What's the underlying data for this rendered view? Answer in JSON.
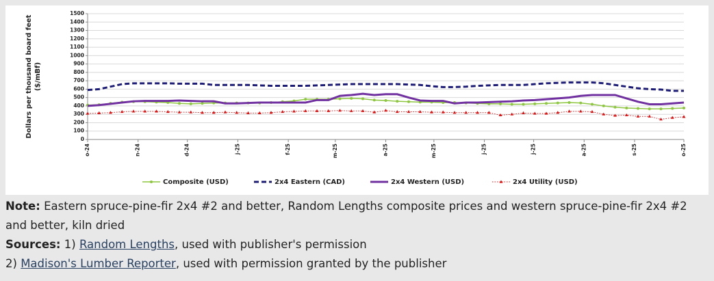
{
  "chart_data": {
    "type": "line",
    "ylabel": [
      "Dollars per thousand board feet",
      "($/mBf)"
    ],
    "x": [
      0,
      1,
      2,
      3,
      4,
      5,
      6,
      7,
      8,
      9,
      10,
      11,
      12,
      13,
      14,
      15,
      16,
      17,
      18,
      19,
      20,
      21,
      22,
      23,
      24,
      25,
      26,
      27,
      28,
      29,
      30,
      31,
      32,
      33,
      34,
      35,
      36,
      37,
      38,
      39,
      40,
      41,
      42,
      43,
      44,
      45,
      46,
      47,
      48,
      49,
      50,
      51,
      52
    ],
    "xlim": [
      0,
      52
    ],
    "xticks": [
      {
        "value": 0,
        "label": "o-24"
      },
      {
        "value": 4.4,
        "label": "n-24"
      },
      {
        "value": 8.7,
        "label": "d-24"
      },
      {
        "value": 13.1,
        "label": "j-25"
      },
      {
        "value": 17.5,
        "label": "f-25"
      },
      {
        "value": 21.6,
        "label": "m-25"
      },
      {
        "value": 26,
        "label": "a-25"
      },
      {
        "value": 30.2,
        "label": "m-25"
      },
      {
        "value": 34.6,
        "label": "j-25"
      },
      {
        "value": 38.9,
        "label": "j-25"
      },
      {
        "value": 43.3,
        "label": "a-25"
      },
      {
        "value": 47.7,
        "label": "s-25"
      },
      {
        "value": 52,
        "label": "o-25"
      }
    ],
    "ylim": [
      0,
      1500
    ],
    "yticks": [
      0,
      100,
      200,
      300,
      400,
      500,
      600,
      700,
      800,
      900,
      1000,
      1100,
      1200,
      1300,
      1400,
      1500
    ],
    "grid": true,
    "legend": "bottom",
    "series": [
      {
        "name": "Composite (USD)",
        "color": "#8dc63f",
        "line_style": "solid",
        "marker": "circle",
        "values": [
          410,
          415,
          430,
          445,
          450,
          450,
          445,
          440,
          430,
          425,
          430,
          435,
          435,
          435,
          435,
          435,
          440,
          450,
          460,
          480,
          480,
          480,
          485,
          490,
          485,
          470,
          465,
          455,
          450,
          445,
          445,
          440,
          440,
          435,
          430,
          425,
          425,
          420,
          420,
          425,
          430,
          435,
          440,
          435,
          420,
          400,
          385,
          375,
          370,
          365,
          365,
          370,
          375
        ]
      },
      {
        "name": "2x4 Eastern (CAD)",
        "color": "#1c1c78",
        "line_style": "dashed",
        "marker": "none",
        "values": [
          590,
          600,
          630,
          660,
          670,
          670,
          670,
          670,
          665,
          665,
          665,
          650,
          650,
          650,
          650,
          645,
          640,
          640,
          640,
          640,
          645,
          650,
          655,
          660,
          660,
          660,
          660,
          660,
          655,
          650,
          635,
          625,
          625,
          630,
          640,
          645,
          650,
          650,
          650,
          660,
          670,
          675,
          680,
          680,
          680,
          670,
          650,
          630,
          610,
          600,
          595,
          580,
          580
        ]
      },
      {
        "name": "2x4 Western (USD)",
        "color": "#7030a0",
        "line_style": "solid",
        "marker": "none",
        "values": [
          400,
          410,
          425,
          440,
          455,
          460,
          460,
          460,
          465,
          460,
          455,
          455,
          430,
          430,
          435,
          440,
          440,
          440,
          440,
          440,
          470,
          470,
          520,
          530,
          545,
          530,
          540,
          540,
          500,
          465,
          460,
          460,
          430,
          440,
          440,
          445,
          450,
          455,
          465,
          470,
          480,
          490,
          500,
          520,
          530,
          530,
          530,
          490,
          450,
          420,
          420,
          430,
          440
        ]
      },
      {
        "name": "2x4 Utility (USD)",
        "color": "#e01010",
        "line_style": "dotted",
        "marker": "triangle",
        "values": [
          310,
          315,
          320,
          330,
          335,
          335,
          335,
          330,
          325,
          325,
          320,
          320,
          325,
          320,
          315,
          315,
          320,
          330,
          335,
          340,
          340,
          340,
          345,
          340,
          340,
          325,
          345,
          330,
          330,
          330,
          325,
          325,
          320,
          320,
          320,
          320,
          290,
          300,
          315,
          310,
          310,
          320,
          335,
          335,
          330,
          300,
          285,
          290,
          275,
          275,
          240,
          260,
          270
        ]
      }
    ]
  },
  "note": {
    "label": "Note:",
    "text": "Eastern spruce-pine-fir 2x4 #2 and better, Random Lengths composite prices and western spruce-pine-fir 2x4 #2 and better, kiln dried"
  },
  "sources": {
    "label": "Sources:",
    "items": [
      {
        "prefix": "1)",
        "link": "Random Lengths",
        "suffix": ", used with publisher's permission"
      },
      {
        "prefix": "2)",
        "link": "Madison's Lumber Reporter",
        "suffix": ", used with permission granted by the publisher"
      }
    ]
  }
}
